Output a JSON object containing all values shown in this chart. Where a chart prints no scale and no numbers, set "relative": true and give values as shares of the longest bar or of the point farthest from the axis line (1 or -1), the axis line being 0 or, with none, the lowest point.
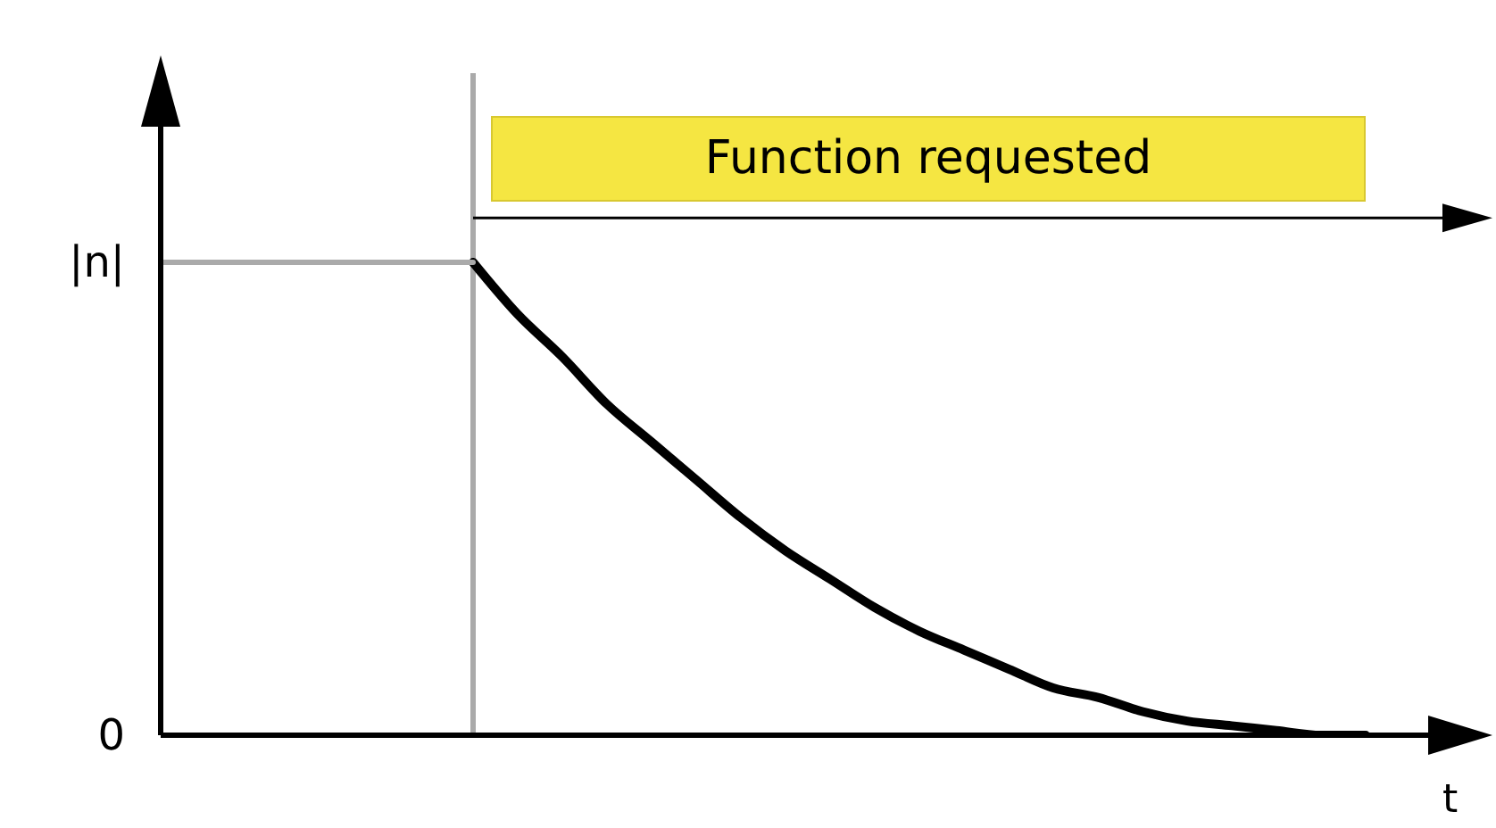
{
  "chart_data": {
    "type": "line",
    "relative": true,
    "xlabel": "t",
    "categories": [
      null,
      null,
      null,
      null,
      null,
      null,
      null,
      null,
      null,
      null,
      null,
      null,
      null,
      null,
      null,
      null,
      null,
      null,
      null,
      null,
      null,
      null,
      null,
      null,
      null,
      null,
      null,
      null,
      null,
      null
    ],
    "series": [
      {
        "color": "#000000",
        "values": [
          null,
          null,
          null,
          null,
          null,
          null,
          null,
          1,
          0.89,
          0.8,
          0.7,
          0.62,
          0.54,
          0.46,
          0.39,
          0.33,
          0.27,
          0.22,
          0.18,
          0.14,
          0.1,
          0.08,
          0.05,
          0.03,
          0.02,
          0.01,
          0,
          0,
          null,
          null
        ]
      },
      {
        "type": "line",
        "color": "#aaaaaa",
        "values": [
          1,
          1,
          1,
          1,
          1,
          1,
          1,
          1,
          null,
          null,
          null,
          null,
          null,
          null,
          null,
          null,
          null,
          null,
          null,
          null,
          null,
          null,
          null,
          null,
          null,
          null,
          null,
          null,
          null,
          null
        ]
      }
    ],
    "annotations": [
      "0",
      "|n|",
      "Function requested"
    ],
    "marker": "none",
    "line_style": "solid"
  }
}
